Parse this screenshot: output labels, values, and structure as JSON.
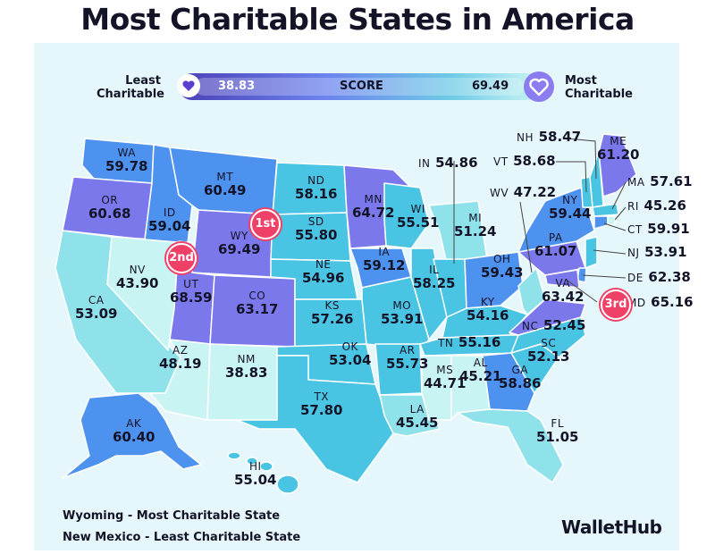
{
  "title": "Most Charitable States in America",
  "legend": {
    "least_label": "Least\nCharitable",
    "most_label": "Most\nCharitable",
    "min_value": "38.83",
    "max_value": "69.49",
    "score_label": "SCORE"
  },
  "colors": {
    "background": "#e6f7fb",
    "lowest": "#c9f4f4",
    "low": "#8fe1ea",
    "mid": "#49c4e2",
    "high": "#4d92ee",
    "highest": "#7a78ea",
    "badge": "#ef4167"
  },
  "badges": {
    "first": "1st",
    "second": "2nd",
    "third": "3rd"
  },
  "states": {
    "WA": {
      "abbr": "WA",
      "score": "59.78"
    },
    "OR": {
      "abbr": "OR",
      "score": "60.68"
    },
    "CA": {
      "abbr": "CA",
      "score": "53.09"
    },
    "NV": {
      "abbr": "NV",
      "score": "43.90"
    },
    "ID": {
      "abbr": "ID",
      "score": "59.04"
    },
    "MT": {
      "abbr": "MT",
      "score": "60.49"
    },
    "WY": {
      "abbr": "WY",
      "score": "69.49"
    },
    "UT": {
      "abbr": "UT",
      "score": "68.59"
    },
    "AZ": {
      "abbr": "AZ",
      "score": "48.19"
    },
    "CO": {
      "abbr": "CO",
      "score": "63.17"
    },
    "NM": {
      "abbr": "NM",
      "score": "38.83"
    },
    "ND": {
      "abbr": "ND",
      "score": "58.16"
    },
    "SD": {
      "abbr": "SD",
      "score": "55.80"
    },
    "NE": {
      "abbr": "NE",
      "score": "54.96"
    },
    "KS": {
      "abbr": "KS",
      "score": "57.26"
    },
    "OK": {
      "abbr": "OK",
      "score": "53.04"
    },
    "TX": {
      "abbr": "TX",
      "score": "57.80"
    },
    "MN": {
      "abbr": "MN",
      "score": "64.72"
    },
    "IA": {
      "abbr": "IA",
      "score": "59.12"
    },
    "MO": {
      "abbr": "MO",
      "score": "53.91"
    },
    "AR": {
      "abbr": "AR",
      "score": "55.73"
    },
    "LA": {
      "abbr": "LA",
      "score": "45.45"
    },
    "WI": {
      "abbr": "WI",
      "score": "55.51"
    },
    "IL": {
      "abbr": "IL",
      "score": "58.25"
    },
    "MI": {
      "abbr": "MI",
      "score": "51.24"
    },
    "IN": {
      "abbr": "IN",
      "score": "54.86"
    },
    "OH": {
      "abbr": "OH",
      "score": "59.43"
    },
    "KY": {
      "abbr": "KY",
      "score": "54.16"
    },
    "TN": {
      "abbr": "TN",
      "score": "55.16"
    },
    "MS": {
      "abbr": "MS",
      "score": "44.71"
    },
    "AL": {
      "abbr": "AL",
      "score": "45.21"
    },
    "GA": {
      "abbr": "GA",
      "score": "58.86"
    },
    "FL": {
      "abbr": "FL",
      "score": "51.05"
    },
    "SC": {
      "abbr": "SC",
      "score": "52.13"
    },
    "NC": {
      "abbr": "NC",
      "score": "52.45"
    },
    "VA": {
      "abbr": "VA",
      "score": "63.42"
    },
    "WV": {
      "abbr": "WV",
      "score": "47.22"
    },
    "PA": {
      "abbr": "PA",
      "score": "61.07"
    },
    "NY": {
      "abbr": "NY",
      "score": "59.44"
    },
    "ME": {
      "abbr": "ME",
      "score": "61.20"
    },
    "NH": {
      "abbr": "NH",
      "score": "58.47"
    },
    "VT": {
      "abbr": "VT",
      "score": "58.68"
    },
    "MA": {
      "abbr": "MA",
      "score": "57.61"
    },
    "RI": {
      "abbr": "RI",
      "score": "45.26"
    },
    "CT": {
      "abbr": "CT",
      "score": "59.91"
    },
    "NJ": {
      "abbr": "NJ",
      "score": "53.91"
    },
    "DE": {
      "abbr": "DE",
      "score": "62.38"
    },
    "MD": {
      "abbr": "MD",
      "score": "65.16"
    },
    "AK": {
      "abbr": "AK",
      "score": "60.40"
    },
    "HI": {
      "abbr": "HI",
      "score": "55.04"
    }
  },
  "footer": {
    "most": "Wyoming - Most Charitable State",
    "least": "New Mexico - Least Charitable State"
  },
  "brand": "WalletHub"
}
